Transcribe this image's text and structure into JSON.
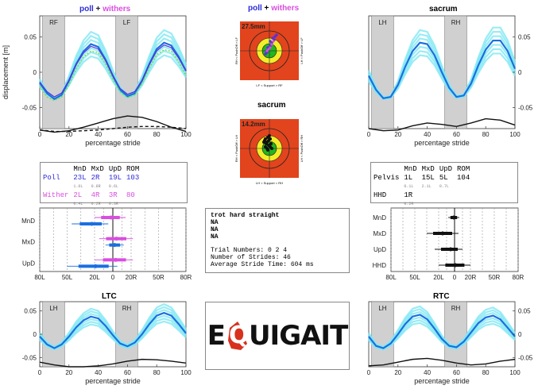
{
  "colors": {
    "cyan": "#7fe7f2",
    "blue": "#1a6fe0",
    "purple": "#5a2fd8",
    "magenta": "#d94de0",
    "green": "#7ddc3a",
    "target_red": "#e2441e",
    "target_yellow": "#f2ee2a",
    "target_green": "#23b61e",
    "gray_band": "#d0d0d0"
  },
  "titles": {
    "poll_part": "poll",
    "plus": " + ",
    "withers_part": "withers",
    "target_top_poll": "poll",
    "target_top_withers": "withers",
    "sacrum_target": "sacrum",
    "sacrum_plot": "sacrum",
    "ltc": "LTC",
    "rtc": "RTC"
  },
  "axis": {
    "xlabel": "percentage stride",
    "ylabel": "displacement [m]"
  },
  "band_labels": {
    "rf": "RF",
    "lf": "LF",
    "lh": "LH",
    "rh": "RH"
  },
  "targets": {
    "top": {
      "value": "27.5mm",
      "left_label": "RH < PushOff > LF",
      "right_label": "LH < PushOff > LF",
      "bottom_label": "LF < Support > RF"
    },
    "bottom": {
      "value": "14.2mm",
      "left_label": "RH < PushOff > LH",
      "right_label": "LH < PushOff > RH",
      "bottom_label": "LH < Support > RH"
    }
  },
  "fore_table": {
    "headers": [
      "MnD",
      "MxD",
      "UpD",
      "ROM"
    ],
    "rows": [
      {
        "name": "Poll",
        "cells": [
          "23L",
          "2R",
          "19L",
          "103"
        ],
        "subs": [
          "1.0L",
          "0.8R",
          "0.6L",
          ""
        ]
      },
      {
        "name": "Wither",
        "cells": [
          "2L",
          "4R",
          "3R",
          "80"
        ],
        "subs": [
          "0.4L",
          "0.2R",
          "0.3R",
          ""
        ]
      }
    ]
  },
  "hind_table": {
    "headers": [
      "MnD",
      "MxD",
      "UpD",
      "ROM"
    ],
    "rows": [
      {
        "name": "Pelvis",
        "cells": [
          "1L",
          "15L",
          "5L",
          "104"
        ],
        "subs": [
          "0.1L",
          "2.1L",
          "0.7L",
          ""
        ]
      },
      {
        "name": "HHD",
        "cells": [
          "1R",
          "",
          "",
          ""
        ],
        "subs": [
          "0.2R",
          "",
          "",
          ""
        ]
      }
    ]
  },
  "info": {
    "condition": "trot hard straight",
    "line2": "NA",
    "line3": "NA",
    "line4": "NA",
    "trial_numbers": "Trial Numbers: 0 2 4",
    "strides": "Number of Strides: 46",
    "stride_time": "Average Stride Time: 604 ms"
  },
  "logo": {
    "text_e": "E",
    "text_q": "Q",
    "text_rest": "UIGAIT"
  },
  "chart_data": [
    {
      "type": "line",
      "id": "poll-withers",
      "title": "poll + withers",
      "xlabel": "percentage stride",
      "ylabel": "displacement [m]",
      "xlim": [
        0,
        100
      ],
      "ylim": [
        -0.08,
        0.08
      ],
      "xticks": [
        0,
        20,
        40,
        60,
        80,
        100
      ],
      "yticks": [
        0.05,
        0,
        -0.05
      ],
      "bands": [
        {
          "label": "RF",
          "x": [
            2,
            17
          ]
        },
        {
          "label": "LF",
          "x": [
            52,
            67
          ]
        }
      ],
      "series": [
        {
          "color": "blue",
          "x": [
            0,
            5,
            10,
            15,
            20,
            25,
            30,
            35,
            40,
            45,
            50,
            55,
            60,
            65,
            70,
            75,
            80,
            85,
            90,
            95,
            100
          ],
          "y": [
            -0.015,
            -0.03,
            -0.038,
            -0.032,
            -0.012,
            0.012,
            0.03,
            0.04,
            0.036,
            0.018,
            -0.005,
            -0.025,
            -0.034,
            -0.03,
            -0.012,
            0.012,
            0.033,
            0.042,
            0.038,
            0.022,
            0.002
          ]
        },
        {
          "color": "green",
          "x": [
            0,
            5,
            10,
            15,
            20,
            25,
            30,
            35,
            40,
            45,
            50,
            55,
            60,
            65,
            70,
            75,
            80,
            85,
            90,
            95,
            100
          ],
          "y": [
            -0.02,
            -0.035,
            -0.04,
            -0.035,
            -0.018,
            0.005,
            0.022,
            0.03,
            0.028,
            0.012,
            -0.01,
            -0.028,
            -0.036,
            -0.032,
            -0.016,
            0.006,
            0.025,
            0.032,
            0.03,
            0.015,
            -0.005
          ]
        },
        {
          "color": "black",
          "x": [
            0,
            10,
            20,
            30,
            40,
            50,
            60,
            70,
            80,
            90,
            100
          ],
          "y": [
            -0.082,
            -0.085,
            -0.083,
            -0.078,
            -0.072,
            -0.066,
            -0.062,
            -0.064,
            -0.07,
            -0.078,
            -0.084
          ]
        },
        {
          "color": "black-dashed",
          "x": [
            0,
            10,
            20,
            30,
            40,
            50,
            60,
            70,
            80,
            90,
            100
          ],
          "y": [
            -0.082,
            -0.084,
            -0.084,
            -0.083,
            -0.082,
            -0.08,
            -0.078,
            -0.077,
            -0.077,
            -0.078,
            -0.08
          ]
        }
      ]
    },
    {
      "type": "line",
      "id": "sacrum",
      "title": "sacrum",
      "xlabel": "percentage stride",
      "ylim": [
        -0.08,
        0.08
      ],
      "xlim": [
        0,
        100
      ],
      "xticks": [
        0,
        20,
        40,
        60,
        80,
        100
      ],
      "yticks": [
        0.05,
        0,
        -0.05
      ],
      "bands": [
        {
          "label": "LH",
          "x": [
            2,
            17
          ]
        },
        {
          "label": "RH",
          "x": [
            52,
            67
          ]
        }
      ],
      "series": [
        {
          "color": "blue",
          "x": [
            0,
            5,
            10,
            15,
            20,
            25,
            30,
            35,
            40,
            45,
            50,
            55,
            60,
            65,
            70,
            75,
            80,
            85,
            90,
            95,
            100
          ],
          "y": [
            -0.005,
            -0.025,
            -0.037,
            -0.035,
            -0.018,
            0.008,
            0.03,
            0.042,
            0.04,
            0.024,
            0.0,
            -0.022,
            -0.035,
            -0.033,
            -0.016,
            0.01,
            0.032,
            0.045,
            0.045,
            0.03,
            0.005
          ]
        },
        {
          "color": "black",
          "x": [
            0,
            10,
            20,
            30,
            40,
            50,
            60,
            70,
            80,
            90,
            100
          ],
          "y": [
            -0.08,
            -0.083,
            -0.082,
            -0.076,
            -0.072,
            -0.074,
            -0.077,
            -0.072,
            -0.066,
            -0.068,
            -0.075
          ]
        }
      ]
    },
    {
      "type": "line",
      "id": "ltc",
      "title": "LTC",
      "xlabel": "percentage stride",
      "ylim": [
        -0.07,
        0.07
      ],
      "xlim": [
        0,
        100
      ],
      "xticks": [
        0,
        20,
        40,
        60,
        80,
        100
      ],
      "yticks": [
        0.05,
        0,
        -0.05
      ],
      "bands": [
        {
          "label": "LH",
          "x": [
            2,
            17
          ]
        },
        {
          "label": "RH",
          "x": [
            52,
            67
          ]
        }
      ],
      "series": [
        {
          "color": "blue",
          "x": [
            0,
            5,
            10,
            15,
            20,
            25,
            30,
            35,
            40,
            45,
            50,
            55,
            60,
            65,
            70,
            75,
            80,
            85,
            90,
            95,
            100
          ],
          "y": [
            -0.005,
            -0.022,
            -0.03,
            -0.022,
            -0.005,
            0.015,
            0.03,
            0.038,
            0.034,
            0.018,
            -0.002,
            -0.02,
            -0.026,
            -0.018,
            0.0,
            0.022,
            0.04,
            0.046,
            0.04,
            0.022,
            0.002
          ]
        },
        {
          "color": "black",
          "x": [
            0,
            10,
            20,
            30,
            40,
            50,
            60,
            70,
            80,
            90,
            100
          ],
          "y": [
            -0.06,
            -0.066,
            -0.07,
            -0.07,
            -0.068,
            -0.064,
            -0.058,
            -0.054,
            -0.055,
            -0.058,
            -0.062
          ]
        }
      ]
    },
    {
      "type": "line",
      "id": "rtc",
      "title": "RTC",
      "xlabel": "percentage stride",
      "ylim": [
        -0.07,
        0.07
      ],
      "xlim": [
        0,
        100
      ],
      "xticks": [
        0,
        20,
        40,
        60,
        80,
        100
      ],
      "yticks": [
        0.05,
        0,
        -0.05
      ],
      "bands": [
        {
          "label": "LH",
          "x": [
            2,
            17
          ]
        },
        {
          "label": "RH",
          "x": [
            52,
            67
          ]
        }
      ],
      "series": [
        {
          "color": "blue",
          "x": [
            0,
            5,
            10,
            15,
            20,
            25,
            30,
            35,
            40,
            45,
            50,
            55,
            60,
            65,
            70,
            75,
            80,
            85,
            90,
            95,
            100
          ],
          "y": [
            -0.005,
            -0.025,
            -0.03,
            -0.02,
            0.0,
            0.022,
            0.038,
            0.042,
            0.032,
            0.012,
            -0.01,
            -0.025,
            -0.028,
            -0.016,
            0.004,
            0.024,
            0.036,
            0.04,
            0.032,
            0.014,
            -0.005
          ]
        },
        {
          "color": "black",
          "x": [
            0,
            10,
            20,
            30,
            40,
            50,
            60,
            70,
            80,
            90,
            100
          ],
          "y": [
            -0.068,
            -0.066,
            -0.06,
            -0.054,
            -0.052,
            -0.056,
            -0.062,
            -0.066,
            -0.064,
            -0.058,
            -0.054
          ]
        }
      ]
    },
    {
      "type": "scatter",
      "id": "fore-asym",
      "xticks": [
        "80L",
        "50L",
        "20L",
        "0",
        "20R",
        "50R",
        "80R"
      ],
      "xlim": [
        -80,
        80
      ],
      "categories": [
        "MnD",
        "MxD",
        "UpD"
      ],
      "series": [
        {
          "name": "Poll",
          "color": "blue",
          "points": [
            {
              "cat": "MnD",
              "mean": -23,
              "lo": -45,
              "hi": -5
            },
            {
              "cat": "MxD",
              "mean": 2,
              "lo": -8,
              "hi": 12
            },
            {
              "cat": "UpD",
              "mean": -19,
              "lo": -50,
              "hi": 5
            }
          ]
        },
        {
          "name": "Wither",
          "color": "magenta",
          "points": [
            {
              "cat": "MnD",
              "mean": -2,
              "lo": -20,
              "hi": 14
            },
            {
              "cat": "MxD",
              "mean": 4,
              "lo": -15,
              "hi": 22
            },
            {
              "cat": "UpD",
              "mean": 3,
              "lo": -20,
              "hi": 22
            }
          ]
        }
      ]
    },
    {
      "type": "scatter",
      "id": "hind-asym",
      "xticks": [
        "80L",
        "50L",
        "20L",
        "0",
        "20R",
        "50R",
        "80R"
      ],
      "xlim": [
        -80,
        80
      ],
      "categories": [
        "MnD",
        "MxD",
        "UpD",
        "HHD"
      ],
      "series": [
        {
          "name": "Pelvis",
          "color": "black",
          "points": [
            {
              "cat": "MnD",
              "mean": -1,
              "lo": -8,
              "hi": 6
            },
            {
              "cat": "MxD",
              "mean": -15,
              "lo": -35,
              "hi": 5
            },
            {
              "cat": "UpD",
              "mean": -5,
              "lo": -25,
              "hi": 10
            },
            {
              "cat": "HHD",
              "mean": 1,
              "lo": -20,
              "hi": 20
            }
          ]
        }
      ]
    }
  ]
}
